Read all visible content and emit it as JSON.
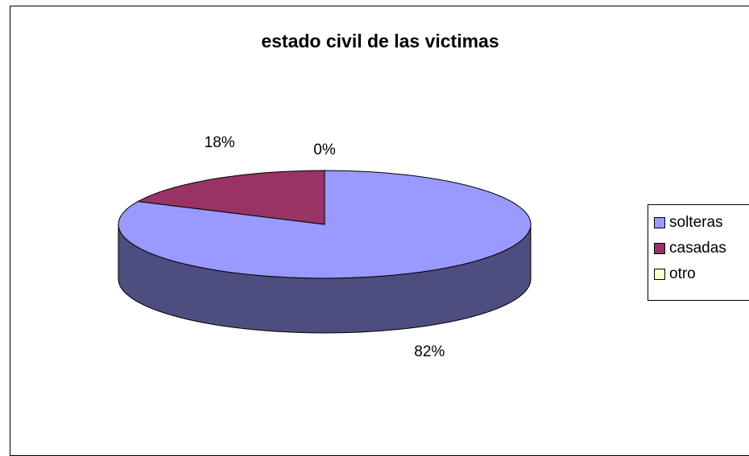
{
  "chart_data": {
    "type": "pie",
    "title": "estado civil de las victimas",
    "categories": [
      "solteras",
      "casadas",
      "otro"
    ],
    "values": [
      82,
      18,
      0
    ],
    "labels": [
      "82%",
      "18%",
      "0%"
    ],
    "colors": {
      "solteras": "#9999ff",
      "solteras_side": "#4d4d80",
      "casadas": "#993366",
      "casadas_side": "#4d1a33",
      "otro": "#ffffcc"
    },
    "legend_position": "right",
    "style": "3d"
  }
}
